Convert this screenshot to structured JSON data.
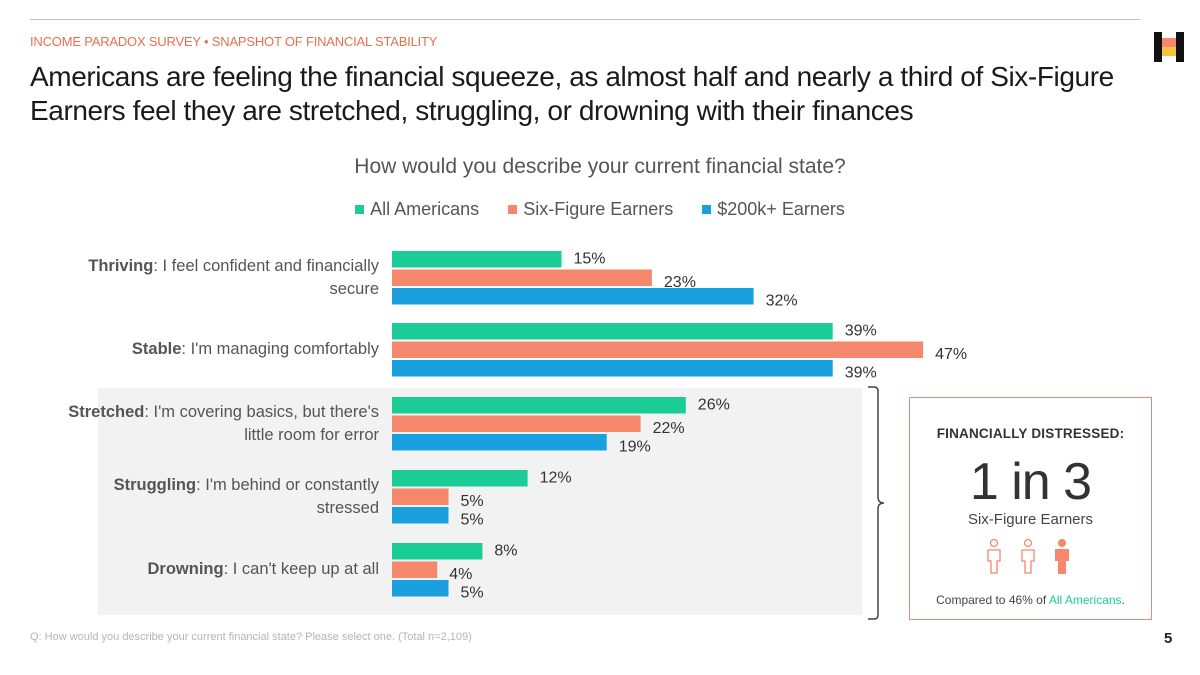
{
  "eyebrow": "INCOME PARADOX SURVEY • SNAPSHOT OF FINANCIAL STABILITY",
  "headline": "Americans are feeling the financial squeeze, as almost half and nearly a third of Six-Figure Earners feel they are stretched, struggling, or drowning with their finances",
  "page_number": "5",
  "footnote": "Q: How would you describe your current financial state? Please select one. (Total n=2,109)",
  "colors": {
    "all": "#1ccc96",
    "six": "#f4876c",
    "k200": "#1a9fdf",
    "accent": "#e8704f"
  },
  "chart_data": {
    "type": "bar",
    "orientation": "horizontal",
    "title": "How would you describe your current financial state?",
    "legend_position": "top",
    "xlim": [
      0,
      50
    ],
    "categories": [
      {
        "bold": "Thriving",
        "rest": ": I feel confident and financially secure"
      },
      {
        "bold": "Stable",
        "rest": ": I'm managing comfortably"
      },
      {
        "bold": "Stretched",
        "rest": ": I'm covering basics, but there's little room for error"
      },
      {
        "bold": "Struggling",
        "rest": ": I'm behind or constantly stressed"
      },
      {
        "bold": "Drowning",
        "rest": ": I can't keep up at all"
      }
    ],
    "series": [
      {
        "name": "All Americans",
        "values": [
          15,
          39,
          26,
          12,
          8
        ]
      },
      {
        "name": "Six-Figure Earners",
        "values": [
          23,
          47,
          22,
          5,
          4
        ]
      },
      {
        "name": "$200k+ Earners",
        "values": [
          32,
          39,
          19,
          5,
          5
        ]
      }
    ],
    "value_suffix": "%"
  },
  "callout": {
    "title": "FINANCIALLY DISTRESSED:",
    "big": "1 in 3",
    "subtitle": "Six-Figure Earners",
    "note_prefix": "Compared to 46% of ",
    "note_highlight": "All Americans",
    "note_suffix": "."
  }
}
